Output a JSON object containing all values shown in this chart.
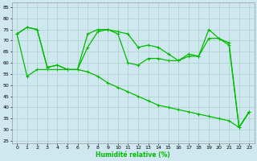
{
  "xlabel": "Humidité relative (%)",
  "background_color": "#cfe8ef",
  "grid_color": "#b0d4cc",
  "line_color": "#00bb00",
  "xlim": [
    -0.5,
    23.5
  ],
  "ylim": [
    24,
    87
  ],
  "yticks": [
    25,
    30,
    35,
    40,
    45,
    50,
    55,
    60,
    65,
    70,
    75,
    80,
    85
  ],
  "xticks": [
    0,
    1,
    2,
    3,
    4,
    5,
    6,
    7,
    8,
    9,
    10,
    11,
    12,
    13,
    14,
    15,
    16,
    17,
    18,
    19,
    20,
    21,
    22,
    23
  ],
  "line1": [
    73,
    76,
    75,
    58,
    59,
    57,
    57,
    73,
    75,
    75,
    74,
    73,
    67,
    68,
    67,
    64,
    61,
    63,
    63,
    75,
    71,
    69,
    31,
    38
  ],
  "line2": [
    73,
    76,
    75,
    58,
    59,
    57,
    57,
    67,
    74,
    75,
    73,
    60,
    59,
    62,
    62,
    61,
    61,
    64,
    63,
    71,
    71,
    68,
    31,
    38
  ],
  "line3": [
    73,
    54,
    57,
    57,
    57,
    57,
    57,
    56,
    54,
    51,
    49,
    47,
    45,
    43,
    41,
    40,
    39,
    38,
    37,
    36,
    35,
    34,
    31,
    38
  ]
}
